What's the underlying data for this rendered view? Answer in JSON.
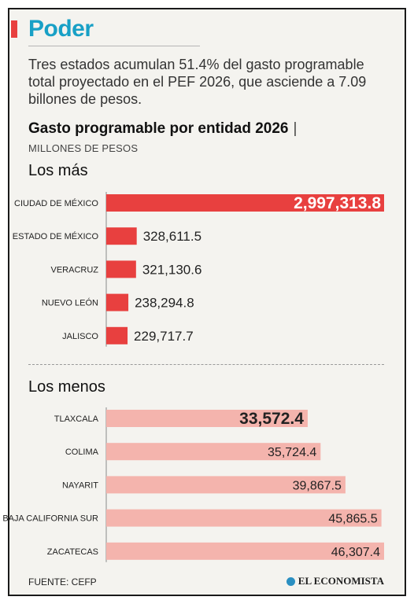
{
  "header": {
    "section": "Poder",
    "lead": "Tres estados acumulan 51.4% del gasto programable total proyectado en el PEF 2026, que asciende a 7.09 billones de pesos.",
    "chart_title": "Gasto programable por entidad 2026",
    "pipe": "|",
    "chart_subtitle": "MILLONES DE PESOS"
  },
  "groups": {
    "top_title": "Los más",
    "bottom_title": "Los menos"
  },
  "footer": {
    "source": "FUENTE: CEFP",
    "brand": "EL ECONOMISTA"
  },
  "colors": {
    "accent": "#e8403f",
    "top_bar": "#e8403f",
    "bottom_bar": "#f4b4ad",
    "section": "#18a0c6"
  },
  "chart_data": [
    {
      "type": "bar",
      "orientation": "horizontal",
      "categories": [
        "CIUDAD DE MÉXICO",
        "ESTADO DE MÉXICO",
        "VERACRUZ",
        "NUEVO LEÓN",
        "JALISCO"
      ],
      "values": [
        2997313.8,
        328611.5,
        321130.6,
        238294.8,
        229717.7
      ],
      "labels": [
        "2,997,313.8",
        "328,611.5",
        "321,130.6",
        "238,294.8",
        "229,717.7"
      ],
      "xlim": [
        0,
        2997313.8
      ]
    },
    {
      "type": "bar",
      "orientation": "horizontal",
      "categories": [
        "TLAXCALA",
        "COLIMA",
        "NAYARIT",
        "BAJA CALIFORNIA SUR",
        "ZACATECAS"
      ],
      "values": [
        33572.4,
        35724.4,
        39867.5,
        45865.5,
        46307.4
      ],
      "labels": [
        "33,572.4",
        "35,724.4",
        "39,867.5",
        "45,865.5",
        "46,307.4"
      ],
      "xlim": [
        0,
        46307.4
      ]
    }
  ]
}
